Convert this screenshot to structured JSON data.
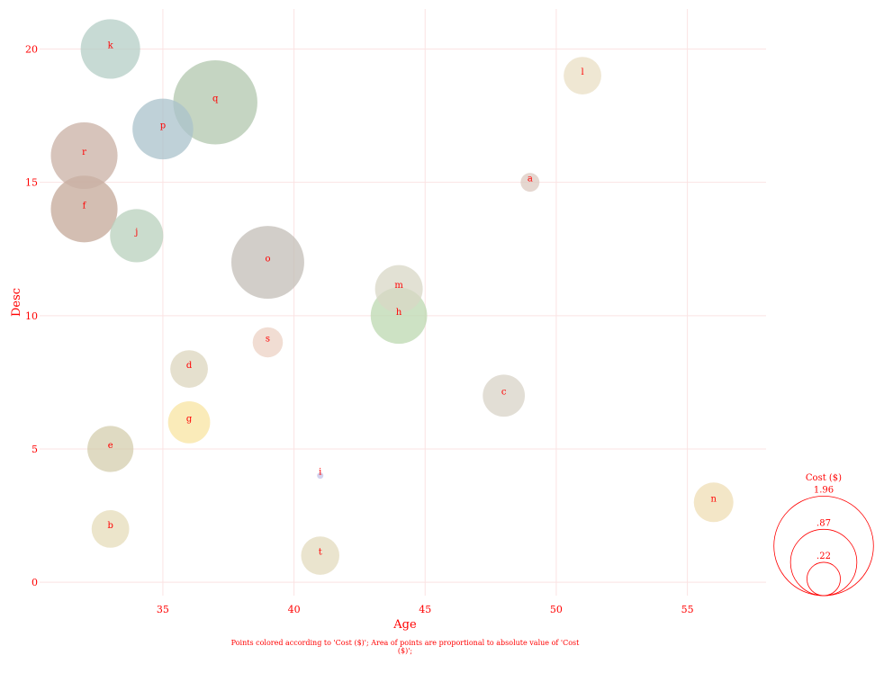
{
  "chart_data": {
    "type": "scatter",
    "xlabel": "Age",
    "ylabel": "Desc",
    "xlim": [
      30.3,
      58.0
    ],
    "ylim": [
      -0.5,
      21.5
    ],
    "xticks": [
      "35",
      "40",
      "45",
      "50",
      "55"
    ],
    "yticks": [
      "0",
      "5",
      "10",
      "15",
      "20"
    ],
    "grid": true,
    "size_legend": {
      "title": "Cost ($)",
      "entries": [
        ".22",
        ".87",
        "1.96"
      ]
    },
    "note": "Points colored according to 'Cost ($)'; Area of points are proportional to absolute value of 'Cost ($)';",
    "points": [
      {
        "label": "a",
        "x": 49,
        "y": 15,
        "cost": 0.07,
        "color": "#dcc9c0"
      },
      {
        "label": "b",
        "x": 33,
        "y": 2,
        "cost": 0.28,
        "color": "#e5dcba"
      },
      {
        "label": "c",
        "x": 48,
        "y": 7,
        "cost": 0.35,
        "color": "#d8d3c7"
      },
      {
        "label": "d",
        "x": 36,
        "y": 8,
        "cost": 0.28,
        "color": "#dcd6bd"
      },
      {
        "label": "e",
        "x": 33,
        "y": 5,
        "cost": 0.42,
        "color": "#d4cdae"
      },
      {
        "label": "f",
        "x": 32,
        "y": 14,
        "cost": 0.88,
        "color": "#c4a898"
      },
      {
        "label": "g",
        "x": 36,
        "y": 6,
        "cost": 0.35,
        "color": "#f8e4a2"
      },
      {
        "label": "h",
        "x": 44,
        "y": 10,
        "cost": 0.63,
        "color": "#bcd8b0"
      },
      {
        "label": "i",
        "x": 41,
        "y": 4,
        "cost": 0.005,
        "color": "#c4c4e8"
      },
      {
        "label": "j",
        "x": 34,
        "y": 13,
        "cost": 0.56,
        "color": "#b8d0bc"
      },
      {
        "label": "k",
        "x": 33,
        "y": 20,
        "cost": 0.7,
        "color": "#b4cdc6"
      },
      {
        "label": "l",
        "x": 51,
        "y": 19,
        "cost": 0.28,
        "color": "#e9dfc4"
      },
      {
        "label": "m",
        "x": 44,
        "y": 11,
        "cost": 0.45,
        "color": "#d8d7c5"
      },
      {
        "label": "n",
        "x": 56,
        "y": 3,
        "cost": 0.31,
        "color": "#efdeb4"
      },
      {
        "label": "o",
        "x": 39,
        "y": 12,
        "cost": 1.05,
        "color": "#c3beb7"
      },
      {
        "label": "p",
        "x": 35,
        "y": 17,
        "cost": 0.73,
        "color": "#a9c2cb"
      },
      {
        "label": "q",
        "x": 37,
        "y": 18,
        "cost": 1.4,
        "color": "#b2c7ae"
      },
      {
        "label": "r",
        "x": 32,
        "y": 16,
        "cost": 0.88,
        "color": "#c9b0a4"
      },
      {
        "label": "s",
        "x": 39,
        "y": 9,
        "cost": 0.18,
        "color": "#ecd2c4"
      },
      {
        "label": "t",
        "x": 41,
        "y": 1,
        "cost": 0.29,
        "color": "#e3dbbe"
      }
    ]
  },
  "colors": {
    "text": "#ff0000",
    "grid": "#fbe3e3"
  }
}
